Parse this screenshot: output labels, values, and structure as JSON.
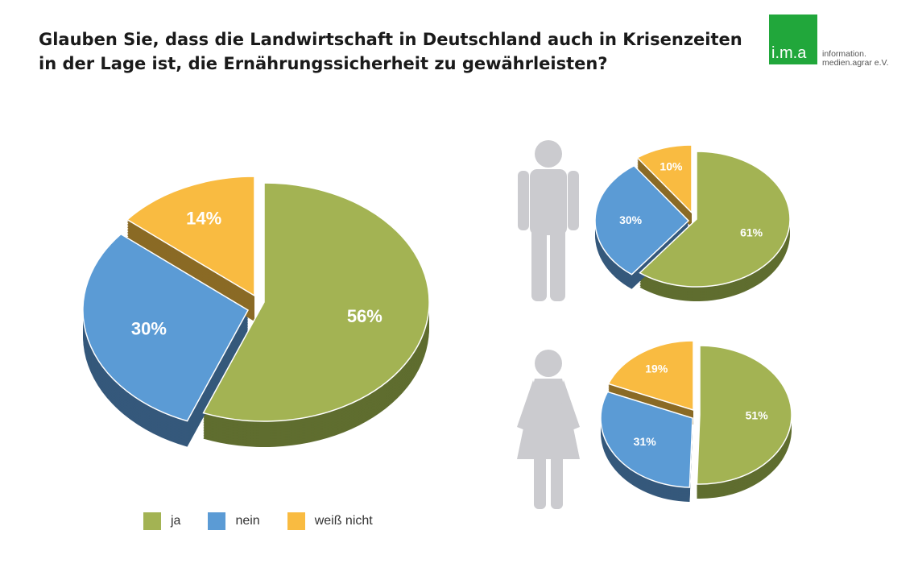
{
  "title_line1": "Glauben Sie, dass die Landwirtschaft in Deutschland auch in Krisenzeiten",
  "title_line2": "in der Lage ist, die Ernährungssicherheit zu gewährleisten?",
  "logo": {
    "mark": "i.m.a",
    "line1": "information.",
    "line2": "medien.agrar e.V."
  },
  "colors": {
    "ja": "#a3b353",
    "nein": "#5b9bd5",
    "weiss_nicht": "#f9bb41",
    "person_icon": "#cbcbcf"
  },
  "chart_data": [
    {
      "type": "pie",
      "categories": [
        "ja",
        "nein",
        "weiß nicht"
      ],
      "values": [
        56,
        30,
        14
      ],
      "labels": [
        "56%",
        "30%",
        "14%"
      ]
    },
    {
      "type": "pie",
      "icon": "male-person-icon",
      "categories": [
        "ja",
        "nein",
        "weiß nicht"
      ],
      "values": [
        61,
        30,
        10
      ],
      "labels": [
        "61%",
        "30%",
        "10%"
      ]
    },
    {
      "type": "pie",
      "icon": "female-person-icon",
      "categories": [
        "ja",
        "nein",
        "weiß nicht"
      ],
      "values": [
        51,
        31,
        19
      ],
      "labels": [
        "51%",
        "31%",
        "19%"
      ]
    }
  ],
  "legend": [
    "ja",
    "nein",
    "weiß nicht"
  ]
}
